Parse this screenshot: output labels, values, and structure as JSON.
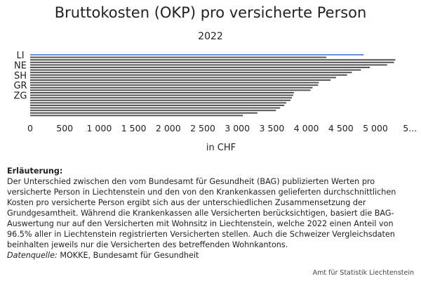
{
  "chart_data": {
    "type": "bar",
    "orientation": "horizontal",
    "title": "Bruttokosten (OKP) pro versicherte Person",
    "subtitle": "2022",
    "xlabel": "in CHF",
    "ylabel": "",
    "xlim": [
      0,
      5300
    ],
    "x_ticks": [
      "0",
      "500",
      "1 000",
      "1 500",
      "2 000",
      "2 500",
      "3 000",
      "3 500",
      "4 000",
      "4 500",
      "5 000",
      "5..."
    ],
    "x_tick_values": [
      0,
      500,
      1000,
      1500,
      2000,
      2500,
      3000,
      3500,
      4000,
      4500,
      5000,
      5500
    ],
    "y_tick_labels": [
      "LI",
      "NE",
      "SH",
      "GR",
      "ZG"
    ],
    "y_tick_rows": [
      0,
      4,
      8,
      12,
      16
    ],
    "grid": false,
    "highlight_color": "#6f8fe6",
    "bar_color": "#555555",
    "series": [
      {
        "values": [
          4830,
          4290,
          5290,
          5270,
          5170,
          4920,
          4790,
          4660,
          4590,
          4430,
          4350,
          4180,
          4170,
          4090,
          4060,
          3820,
          3810,
          3790,
          3770,
          3710,
          3680,
          3620,
          3560,
          3290,
          3080
        ],
        "highlight": [
          0
        ]
      }
    ]
  },
  "notes": {
    "heading": "Erläuterung:",
    "lines": [
      "Der Unterschied zwischen den vom Bundesamt für Gesundheit (BAG) publizierten Werten pro",
      "versicherte Person in Liechtenstein und den von den Krankenkassen gelieferten durchschnittlichen",
      "Kosten pro versicherte Person ergibt sich aus der unterschiedlichen Zusammensetzung der",
      "Grundgesamtheit. Während die Krankenkassen alle Versicherten berücksichtigen, basiert die BAG-",
      "Auswertung nur auf den Versicherten mit Wohnsitz in Liechtenstein, welche 2022 einen Anteil von",
      "96.5% aller in Liechtenstein registrierten Versicherten stellen. Auch die Schweizer Vergleichsdaten",
      "beinhalten jeweils nur die Versicherten des betreffenden Wohnkantons."
    ],
    "source_label": "Datenquelle:",
    "source_text": " MOKKE, Bundesamt für Gesundheit"
  },
  "credit": "Amt für Statistik Liechtenstein"
}
